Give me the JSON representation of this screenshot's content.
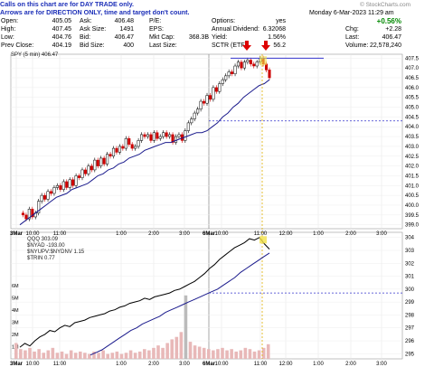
{
  "note": {
    "line1": "Calls on this chart are for DAY TRADE only.",
    "line2": "Arrows are for DIRECTION ONLY, time and target don't count."
  },
  "watermark": "© StockCharts.com",
  "header": {
    "date_time": "Monday  6-Mar-2023  11:29 am",
    "change_pct": "+0.56%",
    "col1": [
      {
        "label": "Open:",
        "value": "405.05"
      },
      {
        "label": "High:",
        "value": "407.45"
      },
      {
        "label": "Low:",
        "value": "404.76"
      },
      {
        "label": "Prev Close:",
        "value": "404.19"
      }
    ],
    "col2": [
      {
        "label": "Ask:",
        "value": "406.48"
      },
      {
        "label": "Ask Size:",
        "value": "1491"
      },
      {
        "label": "Bid:",
        "value": "406.47"
      },
      {
        "label": "Bid Size:",
        "value": "400"
      }
    ],
    "col3": [
      {
        "label": "P/E:",
        "value": ""
      },
      {
        "label": "EPS:",
        "value": ""
      },
      {
        "label": "Mkt Cap:",
        "value": "368.3B"
      },
      {
        "label": "Last Size:",
        "value": ""
      }
    ],
    "col4": [
      {
        "label": "Options:",
        "value": "yes"
      },
      {
        "label": "Annual Dividend:",
        "value": "6.32068"
      },
      {
        "label": "Yield:",
        "value": "1.56%"
      },
      {
        "label": "SCTR (ETF):",
        "value": "56.2"
      }
    ],
    "col5": [
      {
        "label": "Chg:",
        "value": "+2.28"
      },
      {
        "label": "Last:",
        "value": "406.47"
      },
      {
        "label": "Volume:",
        "value": "22,578,240"
      }
    ]
  },
  "upper_legend": "SPY (5 min) 406.47",
  "lower_legend": [
    "QQQ 303.09",
    "$NYAD -193.00",
    "$NYUPV:$NYDNV 1.15",
    "$TRIN 0.77"
  ],
  "colors": {
    "up": "#000000",
    "down": "#cc0000",
    "ma": "#1a1a8c",
    "volume": "#e8b8b8",
    "dashed": "#3333cc",
    "vline": "#e0b000",
    "arrow": "#dd0000",
    "note": "#1c2fb8",
    "green": "#008800"
  },
  "chart_data": [
    {
      "type": "candlestick",
      "title": "SPY (5 min) 406.47",
      "x_tick_labels": [
        "3Mar",
        "10:00",
        "11:00",
        "1:00",
        "2:00",
        "3:00",
        "6Mar",
        "10:00",
        "11:00",
        "12:00",
        "1:00",
        "2:00",
        "3:00"
      ],
      "y_tick_labels": [
        "399.0",
        "399.5",
        "400.0",
        "400.5",
        "401.0",
        "401.5",
        "402.0",
        "402.5",
        "403.0",
        "403.5",
        "404.0",
        "404.5",
        "405.0",
        "405.5",
        "406.0",
        "406.5",
        "407.0",
        "407.5"
      ],
      "ylim": [
        398.8,
        407.7
      ],
      "price_path": [
        399.6,
        399.5,
        399.3,
        399.8,
        399.4,
        399.6,
        400.2,
        400.5,
        400.3,
        400.7,
        400.6,
        400.9,
        401.0,
        400.8,
        401.2,
        400.9,
        401.3,
        401.0,
        401.5,
        401.4,
        401.8,
        401.6,
        402.0,
        401.8,
        402.3,
        402.0,
        402.4,
        402.1,
        402.6,
        402.5,
        402.9,
        402.7,
        403.0,
        402.9,
        403.4,
        403.1,
        402.9,
        403.0,
        403.3,
        403.6,
        403.5,
        403.6,
        403.3,
        403.7,
        403.4,
        403.5,
        403.7,
        403.5,
        403.6,
        403.2,
        403.5,
        403.6,
        403.3,
        403.8,
        404.2,
        404.4,
        404.7,
        404.9,
        405.3,
        405.2,
        405.6,
        405.4,
        406.0,
        405.8,
        406.2,
        406.4,
        406.6,
        406.8,
        406.7,
        407.1,
        407.3,
        407.0,
        407.3,
        407.4,
        407.2,
        407.1,
        407.3,
        407.5,
        407.2,
        406.9,
        406.5
      ],
      "moving_average_path": [
        399.0,
        399.2,
        399.4,
        399.6,
        399.8,
        400.0,
        400.2,
        400.4,
        400.5,
        400.6,
        400.8,
        400.9,
        401.0,
        401.1,
        401.3,
        401.5,
        401.6,
        401.8,
        401.9,
        402.1,
        402.2,
        402.4,
        402.5,
        402.6,
        402.8,
        402.9,
        403.0,
        403.1,
        403.2,
        403.2,
        403.3,
        403.4,
        403.5,
        403.6,
        403.7,
        403.7,
        403.8,
        404.0,
        404.2,
        404.5,
        404.7,
        405.0,
        405.2,
        405.5,
        405.7,
        405.9,
        406.1,
        406.2,
        406.4
      ],
      "reference_lines": [
        {
          "style": "solid",
          "value": 407.5
        },
        {
          "style": "dashed",
          "value": 404.3
        }
      ],
      "annotations": [
        "down arrow",
        "down arrow",
        "vertical marker at 11:29"
      ]
    },
    {
      "type": "line",
      "title": "QQQ 303.09",
      "y_tick_labels": [
        "295",
        "296",
        "297",
        "298",
        "299",
        "300",
        "301",
        "302",
        "303",
        "304"
      ],
      "ylim": [
        294.6,
        304.4
      ],
      "volume_tick_labels": [
        "1M",
        "2M",
        "3M",
        "4M",
        "5M",
        "6M"
      ],
      "price_path": [
        295.5,
        295.8,
        295.6,
        296.0,
        296.3,
        296.5,
        296.8,
        296.7,
        297.0,
        297.2,
        297.1,
        297.4,
        297.5,
        297.6,
        297.8,
        297.9,
        298.0,
        298.1,
        298.3,
        298.4,
        298.6,
        298.7,
        298.9,
        299.0,
        299.1,
        299.3,
        299.2,
        299.4,
        299.5,
        299.6,
        299.7,
        299.9,
        300.0,
        300.2,
        300.4,
        300.6,
        300.9,
        301.2,
        301.6,
        301.9,
        302.3,
        302.6,
        302.9,
        303.2,
        303.4,
        303.6,
        303.9,
        303.8,
        304.0,
        303.5,
        303.1
      ],
      "moving_average_path": [
        294.9,
        295.1,
        295.3,
        295.6,
        295.9,
        296.2,
        296.5,
        296.8,
        297.0,
        297.3,
        297.5,
        297.7,
        297.9,
        298.2,
        298.4,
        298.6,
        298.8,
        299.0,
        299.2,
        299.4,
        299.6,
        299.8,
        300.0,
        300.3,
        300.6,
        300.9,
        301.3,
        301.6,
        301.9,
        302.2,
        302.5,
        302.8
      ],
      "reference_lines": [
        {
          "style": "dashed",
          "value": 299.7
        }
      ],
      "volume_millions": [
        1.3,
        0.8,
        0.7,
        0.9,
        0.6,
        0.8,
        0.5,
        0.7,
        0.9,
        0.5,
        0.6,
        0.4,
        0.7,
        0.5,
        0.6,
        0.5,
        0.4,
        0.6,
        0.5,
        0.7,
        0.4,
        0.5,
        0.6,
        0.4,
        0.5,
        0.7,
        0.5,
        0.6,
        0.8,
        0.7,
        0.9,
        1.1,
        0.9,
        1.3,
        1.6,
        1.8,
        2.2,
        5.2,
        1.4,
        1.1,
        1.0,
        0.9,
        0.8,
        0.7,
        0.8,
        0.9,
        0.7,
        0.8,
        0.6,
        0.7,
        0.9,
        0.8,
        0.6,
        0.7,
        0.9,
        1.2
      ],
      "x_tick_labels": [
        "3Mar",
        "10:00",
        "11:00",
        "1:00",
        "2:00",
        "3:00",
        "6Mar",
        "10:00",
        "11:00",
        "12:00",
        "1:00",
        "2:00",
        "3:00"
      ]
    }
  ]
}
